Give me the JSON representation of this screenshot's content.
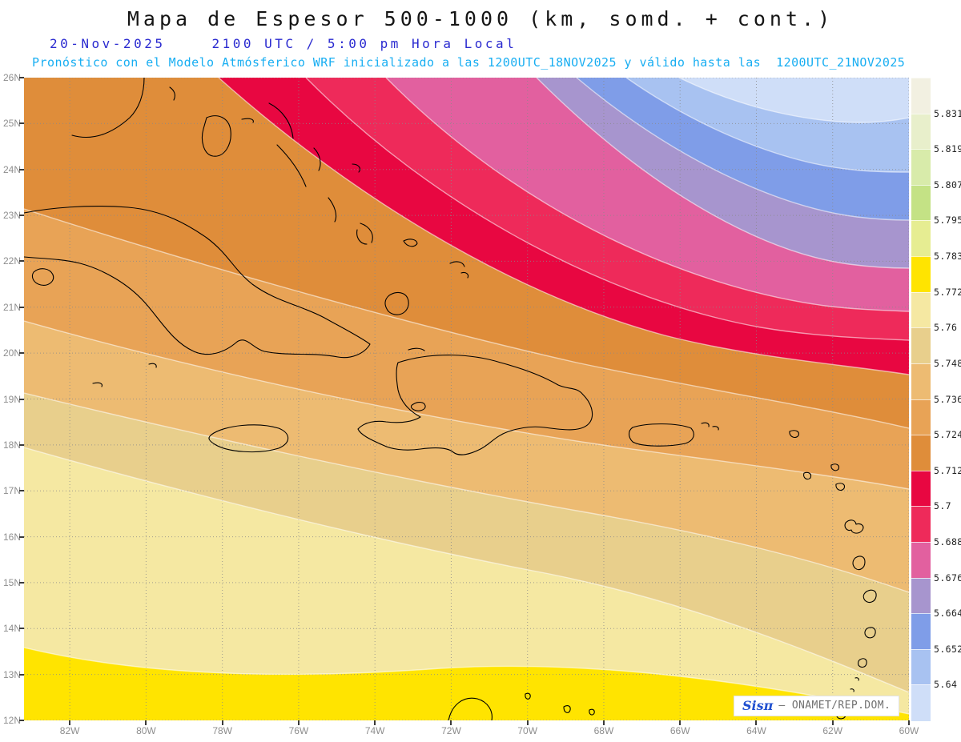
{
  "header": {
    "title": "Mapa de Espesor 500-1000 (km, somd. + cont.)",
    "date": "20-Nov-2025",
    "time_line": "2100 UTC / 5:00 pm Hora Local",
    "forecast_line": "Pronóstico con el Modelo Atmósferico WRF inicializado a las 1200UTC_18NOV2025 y válido hasta las  1200UTC_21NOV2025"
  },
  "axes": {
    "lat_labels": [
      "26N",
      "25N",
      "24N",
      "23N",
      "22N",
      "21N",
      "20N",
      "19N",
      "18N",
      "17N",
      "16N",
      "15N",
      "14N",
      "13N",
      "12N"
    ],
    "lon_labels": [
      "82W",
      "80W",
      "78W",
      "76W",
      "74W",
      "72W",
      "70W",
      "68W",
      "66W",
      "64W",
      "62W",
      "60W"
    ]
  },
  "colorbar": {
    "tick_labels": [
      "5.831",
      "5.819",
      "5.807",
      "5.795",
      "5.783",
      "5.772",
      "5.76",
      "5.748",
      "5.736",
      "5.724",
      "5.712",
      "5.7",
      "5.688",
      "5.676",
      "5.664",
      "5.652",
      "5.64"
    ],
    "segment_colors_top_to_bottom": [
      "#f2f0e1",
      "#e8efcb",
      "#d8ebaa",
      "#c4e285",
      "#e6ed92",
      "#ffe400",
      "#f5e8a2",
      "#e8cf8c",
      "#edbb72",
      "#e8a356",
      "#df8d3a",
      "#e80741",
      "#ee2a5a",
      "#e2609f",
      "#a795ce",
      "#7f9de8",
      "#a8c2f1",
      "#cfdef8"
    ]
  },
  "map": {
    "field_name": "Espesor 500-1000",
    "units": "km",
    "grid_color": "#8a8a8a",
    "contour_line_color": "rgba(255,255,255,0.55)",
    "coastline_color": "#000000"
  },
  "credit": {
    "brand": "Sisπ",
    "org": "– ONAMET/REP.DOM."
  }
}
